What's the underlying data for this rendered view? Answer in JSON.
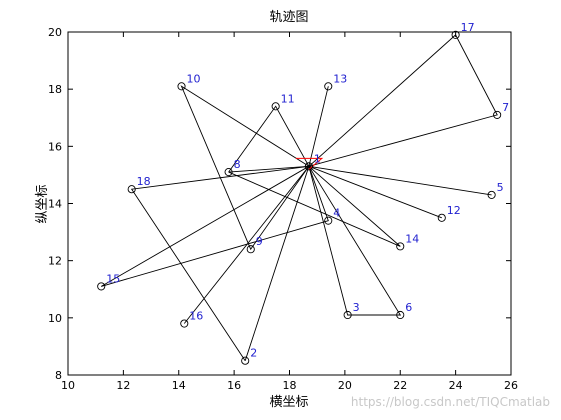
{
  "chart_data": {
    "type": "line",
    "title": "轨迹图",
    "xlabel": "横坐标",
    "ylabel": "纵坐标",
    "xlim": [
      10,
      26
    ],
    "ylim": [
      8,
      20
    ],
    "xticks": [
      10,
      12,
      14,
      16,
      18,
      20,
      22,
      24,
      26
    ],
    "yticks": [
      8,
      10,
      12,
      14,
      16,
      18,
      20
    ],
    "grid": false,
    "center_point": {
      "x": 18.7,
      "y": 15.3
    },
    "points": [
      {
        "label": "1",
        "x": 18.7,
        "y": 15.3
      },
      {
        "label": "2",
        "x": 16.4,
        "y": 8.5
      },
      {
        "label": "3",
        "x": 20.1,
        "y": 10.1
      },
      {
        "label": "4",
        "x": 19.4,
        "y": 13.4
      },
      {
        "label": "5",
        "x": 25.3,
        "y": 14.3
      },
      {
        "label": "6",
        "x": 22.0,
        "y": 10.1
      },
      {
        "label": "7",
        "x": 25.5,
        "y": 17.1
      },
      {
        "label": "8",
        "x": 15.8,
        "y": 15.1
      },
      {
        "label": "9",
        "x": 16.6,
        "y": 12.4
      },
      {
        "label": "10",
        "x": 14.1,
        "y": 18.1
      },
      {
        "label": "11",
        "x": 17.5,
        "y": 17.4
      },
      {
        "label": "12",
        "x": 23.5,
        "y": 13.5
      },
      {
        "label": "13",
        "x": 19.4,
        "y": 18.1
      },
      {
        "label": "14",
        "x": 22.0,
        "y": 12.5
      },
      {
        "label": "15",
        "x": 11.2,
        "y": 11.1
      },
      {
        "label": "16",
        "x": 14.2,
        "y": 9.8
      },
      {
        "label": "17",
        "x": 24.0,
        "y": 19.9
      },
      {
        "label": "18",
        "x": 12.3,
        "y": 14.5
      }
    ],
    "routes": [
      [
        1,
        2,
        1
      ],
      [
        1,
        3,
        6,
        1
      ],
      [
        1,
        4,
        15,
        1
      ],
      [
        1,
        5,
        1
      ],
      [
        1,
        7,
        17,
        1
      ],
      [
        1,
        8,
        14,
        1
      ],
      [
        1,
        9,
        10,
        1
      ],
      [
        1,
        11,
        8
      ],
      [
        1,
        12,
        1
      ],
      [
        1,
        13,
        1
      ],
      [
        1,
        16,
        1
      ],
      [
        1,
        18,
        2
      ]
    ],
    "colors": {
      "line": "#000000",
      "marker": "#000000",
      "label": "#1f1fcf",
      "center": "#ff0000"
    }
  },
  "watermark": "https://blog.csdn.net/TIQCmatlab"
}
